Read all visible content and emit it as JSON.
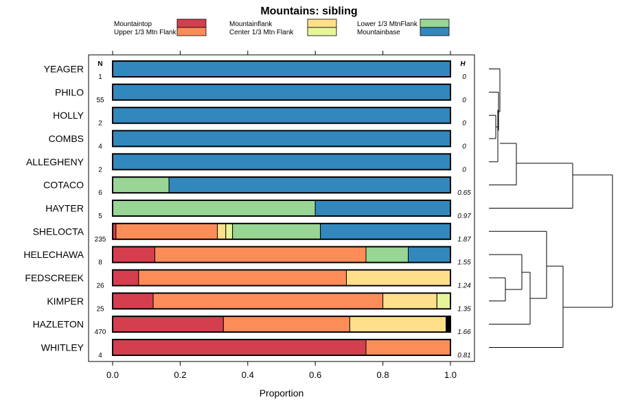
{
  "chart_data": {
    "type": "bar",
    "subtype": "stacked-horizontal-proportion",
    "title": "Mountains: sibling",
    "xlabel": "Proportion",
    "ylabel": "",
    "xlim": [
      0.0,
      1.0
    ],
    "xticks": [
      "0.0",
      "0.2",
      "0.4",
      "0.6",
      "0.8",
      "1.0"
    ],
    "n_header": "N",
    "h_header": "H",
    "legend": [
      {
        "name": "Mountaintop",
        "color": "#d53e4f"
      },
      {
        "name": "Upper 1/3 Mtn Flank",
        "color": "#fc8d59"
      },
      {
        "name": "Mountainflank",
        "color": "#fee08b"
      },
      {
        "name": "Center 1/3 Mtn Flank",
        "color": "#e6f598"
      },
      {
        "name": "Lower 1/3 MtnFlank",
        "color": "#99d594"
      },
      {
        "name": "Mountainbase",
        "color": "#3288bd"
      }
    ],
    "rows": [
      {
        "label": "YEAGER",
        "n": "1",
        "h": "0",
        "segments": [
          {
            "color": "#3288bd",
            "value": 1.0
          }
        ]
      },
      {
        "label": "PHILO",
        "n": "55",
        "h": "0",
        "segments": [
          {
            "color": "#3288bd",
            "value": 1.0
          }
        ]
      },
      {
        "label": "HOLLY",
        "n": "2",
        "h": "0",
        "segments": [
          {
            "color": "#3288bd",
            "value": 1.0
          }
        ]
      },
      {
        "label": "COMBS",
        "n": "4",
        "h": "0",
        "segments": [
          {
            "color": "#3288bd",
            "value": 1.0
          }
        ]
      },
      {
        "label": "ALLEGHENY",
        "n": "2",
        "h": "0",
        "segments": [
          {
            "color": "#3288bd",
            "value": 1.0
          }
        ]
      },
      {
        "label": "COTACO",
        "n": "6",
        "h": "0.65",
        "segments": [
          {
            "color": "#99d594",
            "value": 0.167
          },
          {
            "color": "#3288bd",
            "value": 0.833
          }
        ]
      },
      {
        "label": "HAYTER",
        "n": "5",
        "h": "0.97",
        "segments": [
          {
            "color": "#99d594",
            "value": 0.6
          },
          {
            "color": "#3288bd",
            "value": 0.4
          }
        ]
      },
      {
        "label": "SHELOCTA",
        "n": "235",
        "h": "1.87",
        "segments": [
          {
            "color": "#d53e4f",
            "value": 0.01
          },
          {
            "color": "#fc8d59",
            "value": 0.3
          },
          {
            "color": "#fee08b",
            "value": 0.025
          },
          {
            "color": "#e6f598",
            "value": 0.02
          },
          {
            "color": "#99d594",
            "value": 0.26
          },
          {
            "color": "#3288bd",
            "value": 0.385
          }
        ]
      },
      {
        "label": "HELECHAWA",
        "n": "8",
        "h": "1.55",
        "segments": [
          {
            "color": "#d53e4f",
            "value": 0.125
          },
          {
            "color": "#fc8d59",
            "value": 0.625
          },
          {
            "color": "#99d594",
            "value": 0.125
          },
          {
            "color": "#3288bd",
            "value": 0.125
          }
        ]
      },
      {
        "label": "FEDSCREEK",
        "n": "26",
        "h": "1.24",
        "segments": [
          {
            "color": "#d53e4f",
            "value": 0.077
          },
          {
            "color": "#fc8d59",
            "value": 0.615
          },
          {
            "color": "#fee08b",
            "value": 0.308
          }
        ]
      },
      {
        "label": "KIMPER",
        "n": "25",
        "h": "1.35",
        "segments": [
          {
            "color": "#d53e4f",
            "value": 0.12
          },
          {
            "color": "#fc8d59",
            "value": 0.68
          },
          {
            "color": "#fee08b",
            "value": 0.16
          },
          {
            "color": "#e6f598",
            "value": 0.04
          }
        ]
      },
      {
        "label": "HAZLETON",
        "n": "470",
        "h": "1.66",
        "segments": [
          {
            "color": "#d53e4f",
            "value": 0.328
          },
          {
            "color": "#fc8d59",
            "value": 0.374
          },
          {
            "color": "#fee08b",
            "value": 0.285
          },
          {
            "color": "#000000",
            "value": 0.013
          }
        ]
      },
      {
        "label": "WHITLEY",
        "n": "4",
        "h": "0.81",
        "segments": [
          {
            "color": "#d53e4f",
            "value": 0.75
          },
          {
            "color": "#fc8d59",
            "value": 0.25
          }
        ]
      }
    ]
  }
}
